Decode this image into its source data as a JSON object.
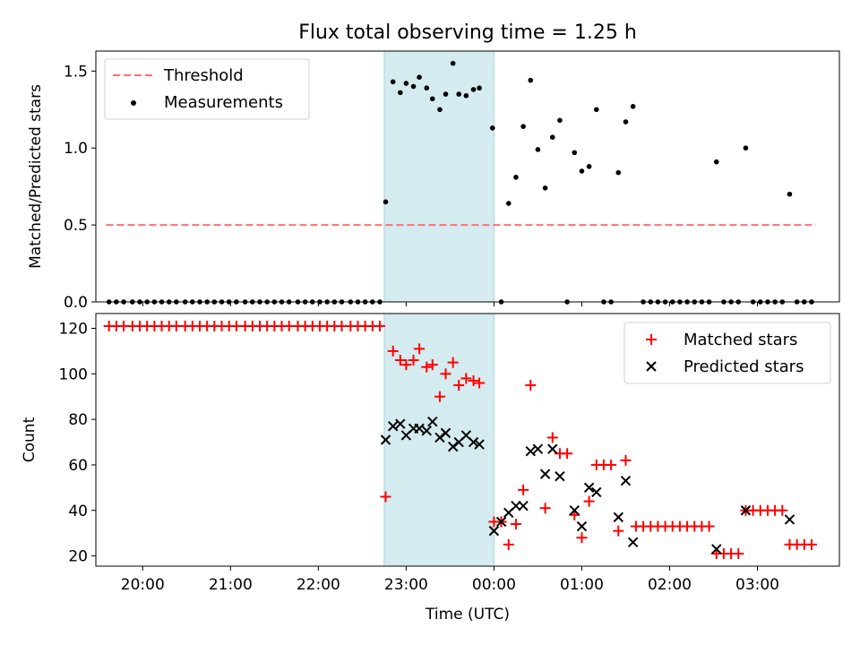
{
  "chart_data": [
    {
      "type": "scatter",
      "title": "Flux total observing time = 1.25 h",
      "ylabel": "Matched/Predicted stars",
      "xlabel": "",
      "xlim": [
        "19:28",
        "03:56"
      ],
      "ylim": [
        0,
        1.63
      ],
      "y_ticks": [
        0.0,
        0.5,
        1.0,
        1.5
      ],
      "y_tick_labels": [
        "0.0",
        "0.5",
        "1.0",
        "1.5"
      ],
      "shaded_interval": {
        "start": "22:45",
        "end": "00:00",
        "color": "#d4ebf0"
      },
      "threshold": {
        "name": "Threshold",
        "value": 0.5,
        "start": "19:35",
        "end": "03:40",
        "color": "#ff7070",
        "style": "dashed"
      },
      "legend_position": "top-left",
      "series": [
        {
          "name": "Measurements",
          "marker": "dot",
          "color": "#000000",
          "points": [
            [
              "19:37",
              0
            ],
            [
              "19:42",
              0
            ],
            [
              "19:47",
              0
            ],
            [
              "19:53",
              0
            ],
            [
              "19:58",
              0
            ],
            [
              "20:03",
              0
            ],
            [
              "20:08",
              0
            ],
            [
              "20:13",
              0
            ],
            [
              "20:18",
              0
            ],
            [
              "20:23",
              0
            ],
            [
              "20:29",
              0
            ],
            [
              "20:34",
              0
            ],
            [
              "20:39",
              0
            ],
            [
              "20:44",
              0
            ],
            [
              "20:49",
              0
            ],
            [
              "20:54",
              0
            ],
            [
              "20:59",
              0
            ],
            [
              "21:04",
              0
            ],
            [
              "21:10",
              0
            ],
            [
              "21:15",
              0
            ],
            [
              "21:20",
              0
            ],
            [
              "21:25",
              0
            ],
            [
              "21:30",
              0
            ],
            [
              "21:35",
              0
            ],
            [
              "21:40",
              0
            ],
            [
              "21:46",
              0
            ],
            [
              "21:51",
              0
            ],
            [
              "21:56",
              0
            ],
            [
              "22:01",
              0
            ],
            [
              "22:06",
              0
            ],
            [
              "22:11",
              0
            ],
            [
              "22:16",
              0
            ],
            [
              "22:22",
              0
            ],
            [
              "22:27",
              0
            ],
            [
              "22:32",
              0
            ],
            [
              "22:37",
              0
            ],
            [
              "22:42",
              0
            ],
            [
              "22:46",
              0.65
            ],
            [
              "22:51",
              1.43
            ],
            [
              "22:56",
              1.36
            ],
            [
              "23:00",
              1.42
            ],
            [
              "23:05",
              1.4
            ],
            [
              "23:09",
              1.46
            ],
            [
              "23:14",
              1.39
            ],
            [
              "23:18",
              1.32
            ],
            [
              "23:23",
              1.25
            ],
            [
              "23:27",
              1.35
            ],
            [
              "23:32",
              1.55
            ],
            [
              "23:36",
              1.35
            ],
            [
              "23:41",
              1.34
            ],
            [
              "23:46",
              1.38
            ],
            [
              "23:50",
              1.39
            ],
            [
              "23:59",
              1.13
            ],
            [
              "00:05",
              0
            ],
            [
              "00:10",
              0.64
            ],
            [
              "00:15",
              0.81
            ],
            [
              "00:20",
              1.14
            ],
            [
              "00:25",
              1.44
            ],
            [
              "00:30",
              0.99
            ],
            [
              "00:35",
              0.74
            ],
            [
              "00:40",
              1.07
            ],
            [
              "00:45",
              1.18
            ],
            [
              "00:50",
              0
            ],
            [
              "00:55",
              0.97
            ],
            [
              "01:00",
              0.85
            ],
            [
              "01:05",
              0.88
            ],
            [
              "01:10",
              1.25
            ],
            [
              "01:15",
              0
            ],
            [
              "01:20",
              0
            ],
            [
              "01:25",
              0.84
            ],
            [
              "01:30",
              1.17
            ],
            [
              "01:35",
              1.27
            ],
            [
              "01:42",
              0
            ],
            [
              "01:47",
              0
            ],
            [
              "01:52",
              0
            ],
            [
              "01:57",
              0
            ],
            [
              "02:02",
              0
            ],
            [
              "02:07",
              0
            ],
            [
              "02:12",
              0
            ],
            [
              "02:17",
              0
            ],
            [
              "02:22",
              0
            ],
            [
              "02:27",
              0
            ],
            [
              "02:32",
              0.91
            ],
            [
              "02:37",
              0
            ],
            [
              "02:42",
              0
            ],
            [
              "02:47",
              0
            ],
            [
              "02:52",
              1.0
            ],
            [
              "02:57",
              0
            ],
            [
              "03:02",
              0
            ],
            [
              "03:07",
              0
            ],
            [
              "03:12",
              0
            ],
            [
              "03:17",
              0
            ],
            [
              "03:22",
              0.7
            ],
            [
              "03:27",
              0
            ],
            [
              "03:32",
              0
            ],
            [
              "03:37",
              0
            ]
          ]
        }
      ]
    },
    {
      "type": "scatter",
      "title": "",
      "ylabel": "Count",
      "xlabel": "Time (UTC)",
      "xlim": [
        "19:28",
        "03:56"
      ],
      "ylim": [
        15.5,
        126.5
      ],
      "x_ticks": [
        "20:00",
        "21:00",
        "22:00",
        "23:00",
        "00:00",
        "01:00",
        "02:00",
        "03:00"
      ],
      "y_ticks": [
        20,
        40,
        60,
        80,
        100,
        120
      ],
      "y_tick_labels": [
        "20",
        "40",
        "60",
        "80",
        "100",
        "120"
      ],
      "shaded_interval": {
        "start": "22:45",
        "end": "00:00",
        "color": "#d4ebf0"
      },
      "legend_position": "top-right",
      "series": [
        {
          "name": "Matched stars",
          "marker": "plus",
          "color": "#ff0000",
          "points": [
            [
              "19:37",
              121
            ],
            [
              "19:42",
              121
            ],
            [
              "19:47",
              121
            ],
            [
              "19:53",
              121
            ],
            [
              "19:58",
              121
            ],
            [
              "20:03",
              121
            ],
            [
              "20:08",
              121
            ],
            [
              "20:13",
              121
            ],
            [
              "20:18",
              121
            ],
            [
              "20:23",
              121
            ],
            [
              "20:29",
              121
            ],
            [
              "20:34",
              121
            ],
            [
              "20:39",
              121
            ],
            [
              "20:44",
              121
            ],
            [
              "20:49",
              121
            ],
            [
              "20:54",
              121
            ],
            [
              "20:59",
              121
            ],
            [
              "21:04",
              121
            ],
            [
              "21:10",
              121
            ],
            [
              "21:15",
              121
            ],
            [
              "21:20",
              121
            ],
            [
              "21:25",
              121
            ],
            [
              "21:30",
              121
            ],
            [
              "21:35",
              121
            ],
            [
              "21:40",
              121
            ],
            [
              "21:46",
              121
            ],
            [
              "21:51",
              121
            ],
            [
              "21:56",
              121
            ],
            [
              "22:01",
              121
            ],
            [
              "22:06",
              121
            ],
            [
              "22:11",
              121
            ],
            [
              "22:16",
              121
            ],
            [
              "22:22",
              121
            ],
            [
              "22:27",
              121
            ],
            [
              "22:32",
              121
            ],
            [
              "22:37",
              121
            ],
            [
              "22:42",
              121
            ],
            [
              "22:46",
              46
            ],
            [
              "22:51",
              110
            ],
            [
              "22:56",
              106
            ],
            [
              "23:00",
              104
            ],
            [
              "23:05",
              106
            ],
            [
              "23:09",
              111
            ],
            [
              "23:14",
              103
            ],
            [
              "23:18",
              104
            ],
            [
              "23:23",
              90
            ],
            [
              "23:27",
              100
            ],
            [
              "23:32",
              105
            ],
            [
              "23:36",
              95
            ],
            [
              "23:41",
              98
            ],
            [
              "23:46",
              97
            ],
            [
              "23:50",
              96
            ],
            [
              "00:00",
              35
            ],
            [
              "00:05",
              35
            ],
            [
              "00:10",
              25
            ],
            [
              "00:15",
              34
            ],
            [
              "00:20",
              49
            ],
            [
              "00:25",
              95
            ],
            [
              "00:35",
              41
            ],
            [
              "00:40",
              72
            ],
            [
              "00:45",
              65
            ],
            [
              "00:50",
              65
            ],
            [
              "00:55",
              38
            ],
            [
              "01:00",
              28
            ],
            [
              "01:05",
              44
            ],
            [
              "01:10",
              60
            ],
            [
              "01:15",
              60
            ],
            [
              "01:20",
              60
            ],
            [
              "01:25",
              31
            ],
            [
              "01:30",
              62
            ],
            [
              "01:37",
              33
            ],
            [
              "01:42",
              33
            ],
            [
              "01:47",
              33
            ],
            [
              "01:52",
              33
            ],
            [
              "01:57",
              33
            ],
            [
              "02:02",
              33
            ],
            [
              "02:07",
              33
            ],
            [
              "02:12",
              33
            ],
            [
              "02:17",
              33
            ],
            [
              "02:22",
              33
            ],
            [
              "02:27",
              33
            ],
            [
              "02:32",
              21
            ],
            [
              "02:37",
              21
            ],
            [
              "02:42",
              21
            ],
            [
              "02:47",
              21
            ],
            [
              "02:52",
              40
            ],
            [
              "02:57",
              40
            ],
            [
              "03:02",
              40
            ],
            [
              "03:07",
              40
            ],
            [
              "03:12",
              40
            ],
            [
              "03:17",
              40
            ],
            [
              "03:22",
              25
            ],
            [
              "03:27",
              25
            ],
            [
              "03:32",
              25
            ],
            [
              "03:37",
              25
            ]
          ]
        },
        {
          "name": "Predicted stars",
          "marker": "x",
          "color": "#000000",
          "points": [
            [
              "22:46",
              71
            ],
            [
              "22:51",
              77
            ],
            [
              "22:56",
              78
            ],
            [
              "23:00",
              73
            ],
            [
              "23:05",
              76
            ],
            [
              "23:09",
              76
            ],
            [
              "23:14",
              75
            ],
            [
              "23:18",
              79
            ],
            [
              "23:23",
              72
            ],
            [
              "23:27",
              74
            ],
            [
              "23:32",
              68
            ],
            [
              "23:36",
              70
            ],
            [
              "23:41",
              73
            ],
            [
              "23:46",
              70
            ],
            [
              "23:50",
              69
            ],
            [
              "00:00",
              31
            ],
            [
              "00:05",
              35
            ],
            [
              "00:10",
              39
            ],
            [
              "00:15",
              42
            ],
            [
              "00:20",
              42
            ],
            [
              "00:25",
              66
            ],
            [
              "00:30",
              67
            ],
            [
              "00:35",
              56
            ],
            [
              "00:40",
              67
            ],
            [
              "00:45",
              55
            ],
            [
              "00:55",
              40
            ],
            [
              "01:00",
              33
            ],
            [
              "01:05",
              50
            ],
            [
              "01:10",
              48
            ],
            [
              "01:25",
              37
            ],
            [
              "01:30",
              53
            ],
            [
              "01:35",
              26
            ],
            [
              "02:32",
              23
            ],
            [
              "02:52",
              40
            ],
            [
              "03:22",
              36
            ]
          ]
        }
      ]
    }
  ]
}
